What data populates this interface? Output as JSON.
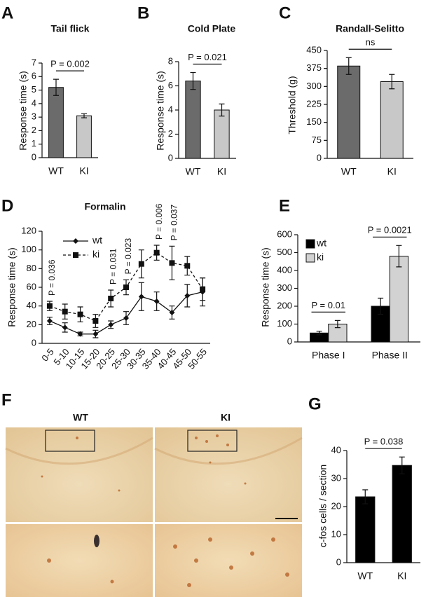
{
  "chart_data": [
    {
      "type": "bar",
      "panel": "A",
      "title": "Tail flick",
      "y_label": "Response time (s)",
      "categories": [
        "WT",
        "KI"
      ],
      "values": [
        5.2,
        3.1
      ],
      "errors": [
        0.6,
        0.15
      ],
      "colors": [
        "#6b6b6b",
        "#c8c8c8"
      ],
      "ylim": [
        0,
        7
      ],
      "yticks": [
        0,
        1,
        2,
        3,
        4,
        5,
        6,
        7
      ],
      "annotation": "P = 0.002"
    },
    {
      "type": "bar",
      "panel": "B",
      "title": "Cold Plate",
      "y_label": "Response time (s)",
      "categories": [
        "WT",
        "KI"
      ],
      "values": [
        6.4,
        4.0
      ],
      "errors": [
        0.7,
        0.5
      ],
      "colors": [
        "#6b6b6b",
        "#c8c8c8"
      ],
      "ylim": [
        0,
        8
      ],
      "yticks": [
        0,
        2,
        4,
        6,
        8
      ],
      "annotation": "P = 0.021"
    },
    {
      "type": "bar",
      "panel": "C",
      "title": "Randall-Selitto",
      "y_label": "Threshold (g)",
      "categories": [
        "WT",
        "KI"
      ],
      "values": [
        385,
        320
      ],
      "errors": [
        35,
        30
      ],
      "colors": [
        "#6b6b6b",
        "#c8c8c8"
      ],
      "ylim": [
        0,
        450
      ],
      "yticks": [
        0,
        75,
        150,
        225,
        300,
        375,
        450
      ],
      "annotation": "ns"
    },
    {
      "type": "line",
      "panel": "D",
      "title": "Formalin",
      "y_label": "Response time (s)",
      "categories": [
        "0-5",
        "5-10",
        "10-15",
        "15-20",
        "20-25",
        "25-30",
        "30-35",
        "35-40",
        "40-45",
        "45-50",
        "50-55"
      ],
      "series": [
        {
          "name": "wt",
          "color": "#111111",
          "line_style": "solid",
          "marker": "diamond",
          "values": [
            24,
            17,
            10,
            10,
            20,
            27,
            50,
            45,
            33,
            51,
            55
          ],
          "errors": [
            4,
            5,
            2,
            4,
            4,
            7,
            15,
            10,
            7,
            12,
            15
          ]
        },
        {
          "name": "ki",
          "color": "#111111",
          "line_style": "dashed",
          "marker": "square",
          "values": [
            40,
            34,
            31,
            24,
            48,
            60,
            85,
            97,
            86,
            83,
            58
          ],
          "errors": [
            5,
            8,
            8,
            7,
            9,
            8,
            15,
            8,
            18,
            10,
            12
          ]
        }
      ],
      "annotations": [
        "P = 0.036",
        null,
        null,
        null,
        "P = 0.031",
        "P = 0.023",
        null,
        "P = 0.006",
        "P = 0.037",
        null,
        null
      ],
      "ylim": [
        0,
        120
      ],
      "yticks": [
        0,
        20,
        40,
        60,
        80,
        100,
        120
      ]
    },
    {
      "type": "bar",
      "panel": "E",
      "y_label": "Response time (s)",
      "categories": [
        "Phase I",
        "Phase II"
      ],
      "series": [
        {
          "name": "wt",
          "color": "#000000",
          "values": [
            50,
            200
          ],
          "errors": [
            10,
            45
          ]
        },
        {
          "name": "ki",
          "color": "#d2d2d2",
          "values": [
            100,
            480
          ],
          "errors": [
            20,
            60
          ]
        }
      ],
      "annotations": [
        "P = 0.01",
        "P = 0.0021"
      ],
      "ylim": [
        0,
        600
      ],
      "yticks": [
        0,
        100,
        200,
        300,
        400,
        500,
        600
      ]
    },
    {
      "type": "bar",
      "panel": "G",
      "y_label": "c-fos cells / section",
      "categories": [
        "WT",
        "KI"
      ],
      "values": [
        23.5,
        34.7
      ],
      "errors": [
        2.5,
        3
      ],
      "colors": [
        "#000000",
        "#000000"
      ],
      "ylim": [
        0,
        40
      ],
      "yticks": [
        0,
        10,
        20,
        30,
        40
      ],
      "annotation": "P = 0.038"
    }
  ],
  "image_panel": {
    "panel": "F",
    "labels": [
      "WT",
      "KI"
    ]
  }
}
